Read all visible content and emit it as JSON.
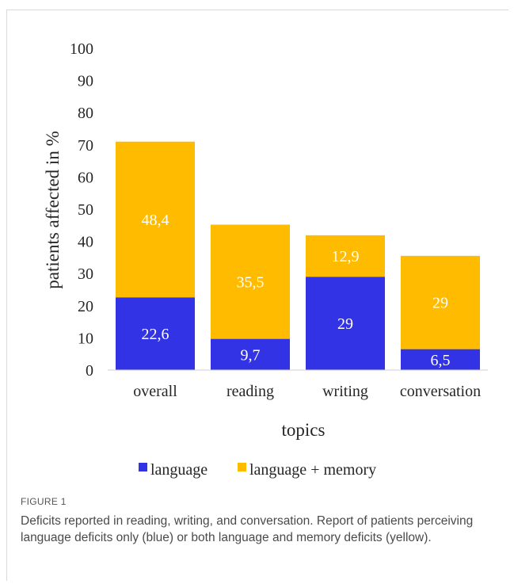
{
  "figure": {
    "label": "FIGURE 1",
    "caption": "Deficits reported in reading, writing, and conversation. Report of patients perceiving language deficits only (blue) or both language and memory deficits (yellow)."
  },
  "chart_data": {
    "type": "bar",
    "stacked": true,
    "categories": [
      "overall",
      "reading",
      "writing",
      "conversation"
    ],
    "series": [
      {
        "name": "language",
        "color": "#3333e6",
        "values": [
          22.6,
          9.7,
          29,
          6.5
        ],
        "labels": [
          "22,6",
          "9,7",
          "29",
          "6,5"
        ]
      },
      {
        "name": "language + memory",
        "color": "#ffbb00",
        "values": [
          48.4,
          35.5,
          12.9,
          29
        ],
        "labels": [
          "48,4",
          "35,5",
          "12,9",
          "29"
        ]
      }
    ],
    "xlabel": "topics",
    "ylabel": "patients affected in %",
    "ylim": [
      0,
      100
    ],
    "yticks": [
      0,
      10,
      20,
      30,
      40,
      50,
      60,
      70,
      80,
      90,
      100
    ],
    "grid": false,
    "legend_position": "bottom"
  }
}
